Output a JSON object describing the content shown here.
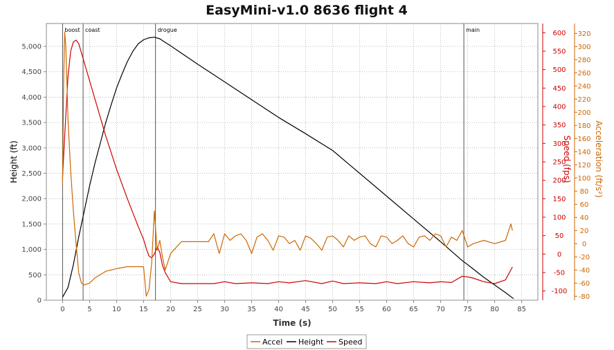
{
  "chart_data": {
    "type": "line",
    "title": "EasyMini-v1.0 8636 flight 4",
    "xlabel": "Time (s)",
    "xlim": [
      -3,
      88
    ],
    "xticks": [
      0,
      5,
      10,
      15,
      20,
      25,
      30,
      35,
      40,
      45,
      50,
      55,
      60,
      65,
      70,
      75,
      80,
      85
    ],
    "axes": {
      "height": {
        "label": "Height (ft)",
        "ylim": [
          0,
          5450
        ],
        "ticks": [
          0,
          500,
          1000,
          1500,
          2000,
          2500,
          3000,
          3500,
          4000,
          4500,
          5000
        ],
        "tick_labels": [
          "0",
          "500",
          "1,000",
          "1,500",
          "2,000",
          "2,500",
          "3,000",
          "3,500",
          "4,000",
          "4,500",
          "5,000"
        ],
        "color": "#000000"
      },
      "speed": {
        "label": "Speed (fps)",
        "ylim": [
          -125,
          625
        ],
        "ticks": [
          -100,
          -50,
          0,
          50,
          100,
          150,
          200,
          250,
          300,
          350,
          400,
          450,
          500,
          550,
          600
        ],
        "tick_labels": [
          "-100",
          "-50",
          "0",
          "50",
          "100",
          "150",
          "200",
          "250",
          "300",
          "350",
          "400",
          "450",
          "500",
          "550",
          "600"
        ],
        "color": "#cc0000"
      },
      "accel": {
        "label": "Acceleration (ft/s²)",
        "ylim": [
          -86,
          335
        ],
        "ticks": [
          -80,
          -60,
          -40,
          -20,
          0,
          20,
          40,
          60,
          80,
          100,
          120,
          140,
          160,
          180,
          200,
          220,
          240,
          260,
          280,
          300,
          320
        ],
        "tick_labels": [
          "-80",
          "-60",
          "-40",
          "-20",
          "0",
          "20",
          "40",
          "60",
          "80",
          "100",
          "120",
          "140",
          "160",
          "180",
          "200",
          "220",
          "240",
          "260",
          "280",
          "300",
          "320"
        ],
        "color": "#cc6600"
      }
    },
    "events": [
      {
        "label": "boost",
        "t": 0
      },
      {
        "label": "coast",
        "t": 3.8
      },
      {
        "label": "drogue",
        "t": 17.2
      },
      {
        "label": "main",
        "t": 74.3
      }
    ],
    "legend": [
      "Accel",
      "Height",
      "Speed"
    ],
    "legend_position": "bottom",
    "grid": true,
    "series": [
      {
        "name": "Height",
        "axis": "height",
        "color": "#000000",
        "x": [
          0,
          1,
          2,
          3,
          4,
          5,
          6,
          7,
          8,
          9,
          10,
          11,
          12,
          13,
          14,
          15,
          16,
          17,
          18,
          19,
          20,
          25,
          30,
          35,
          40,
          45,
          50,
          55,
          60,
          65,
          70,
          74,
          75,
          78,
          80,
          82,
          83.5
        ],
        "y": [
          60,
          250,
          700,
          1250,
          1750,
          2250,
          2700,
          3100,
          3500,
          3850,
          4180,
          4450,
          4700,
          4900,
          5050,
          5130,
          5170,
          5180,
          5150,
          5080,
          5010,
          4650,
          4300,
          3950,
          3600,
          3280,
          2950,
          2500,
          2050,
          1600,
          1150,
          780,
          700,
          450,
          300,
          150,
          30
        ]
      },
      {
        "name": "Speed",
        "axis": "speed",
        "color": "#cc0000",
        "x": [
          0,
          0.5,
          1,
          1.5,
          2,
          2.5,
          3,
          4,
          6,
          8,
          10,
          12,
          14,
          15,
          15.5,
          16,
          16.5,
          17,
          17.5,
          18,
          18.5,
          19,
          20,
          22,
          25,
          28,
          30,
          32,
          35,
          38,
          40,
          42,
          45,
          48,
          50,
          52,
          55,
          58,
          60,
          62,
          65,
          68,
          70,
          72,
          74,
          75,
          76,
          78,
          80,
          82,
          83.3
        ],
        "y": [
          210,
          350,
          480,
          550,
          575,
          580,
          570,
          520,
          420,
          320,
          230,
          150,
          75,
          40,
          15,
          -5,
          -10,
          0,
          20,
          5,
          -30,
          -50,
          -75,
          -80,
          -80,
          -80,
          -75,
          -80,
          -78,
          -80,
          -75,
          -78,
          -72,
          -80,
          -73,
          -80,
          -78,
          -80,
          -75,
          -80,
          -75,
          -78,
          -75,
          -77,
          -60,
          -62,
          -65,
          -75,
          -80,
          -70,
          -35
        ]
      },
      {
        "name": "Accel",
        "axis": "accel",
        "color": "#cc6600",
        "x": [
          0,
          0.2,
          0.4,
          0.6,
          1,
          1.5,
          2,
          2.5,
          3,
          3.5,
          4,
          5,
          6,
          8,
          10,
          12,
          14,
          15,
          15.5,
          16,
          16.5,
          17,
          17.5,
          18,
          18.5,
          19,
          20,
          22,
          25,
          27,
          28,
          29,
          30,
          31,
          32,
          33,
          34,
          35,
          36,
          37,
          38,
          39,
          40,
          41,
          42,
          43,
          44,
          45,
          46,
          47,
          48,
          49,
          50,
          51,
          52,
          53,
          54,
          55,
          56,
          57,
          58,
          59,
          60,
          61,
          62,
          63,
          64,
          65,
          66,
          67,
          68,
          69,
          70,
          71,
          72,
          73,
          74,
          75,
          76,
          78,
          80,
          82,
          83,
          83.3
        ],
        "y": [
          90,
          250,
          322,
          300,
          190,
          110,
          50,
          0,
          -45,
          -60,
          -63,
          -60,
          -52,
          -42,
          -38,
          -35,
          -35,
          -35,
          -80,
          -70,
          -30,
          50,
          -10,
          5,
          -20,
          -40,
          -15,
          3,
          3,
          3,
          15,
          -15,
          15,
          5,
          12,
          15,
          5,
          -15,
          10,
          15,
          5,
          -10,
          12,
          10,
          0,
          5,
          -10,
          12,
          8,
          0,
          -10,
          10,
          12,
          5,
          -5,
          12,
          5,
          10,
          12,
          0,
          -5,
          12,
          10,
          0,
          5,
          12,
          0,
          -5,
          10,
          12,
          5,
          15,
          12,
          -5,
          10,
          5,
          20,
          -5,
          0,
          5,
          0,
          5,
          30,
          20
        ]
      }
    ]
  }
}
